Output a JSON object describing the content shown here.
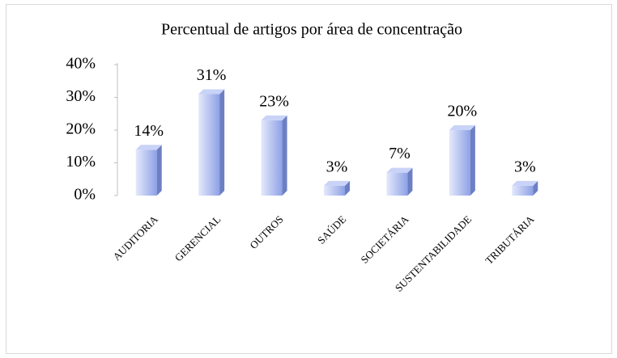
{
  "chart_data": {
    "type": "bar",
    "title": "Percentual de artigos por área de concentração",
    "categories": [
      "AUDITORIA",
      "GERENCIAL",
      "OUTROS",
      "SAÚDE",
      "SOCIETÁRIA",
      "SUSTENTABILIDADE",
      "TRIBUTÁRIA"
    ],
    "values": [
      14,
      31,
      23,
      3,
      7,
      20,
      3
    ],
    "value_labels": [
      "14%",
      "31%",
      "23%",
      "3%",
      "7%",
      "20%",
      "3%"
    ],
    "color": "#aab8f0",
    "ylim": [
      0,
      40
    ],
    "yticks": [
      {
        "value": 0,
        "label": "0%"
      },
      {
        "value": 10,
        "label": "10%"
      },
      {
        "value": 20,
        "label": "20%"
      },
      {
        "value": 30,
        "label": "30%"
      },
      {
        "value": 40,
        "label": "40%"
      }
    ],
    "grid": false
  }
}
